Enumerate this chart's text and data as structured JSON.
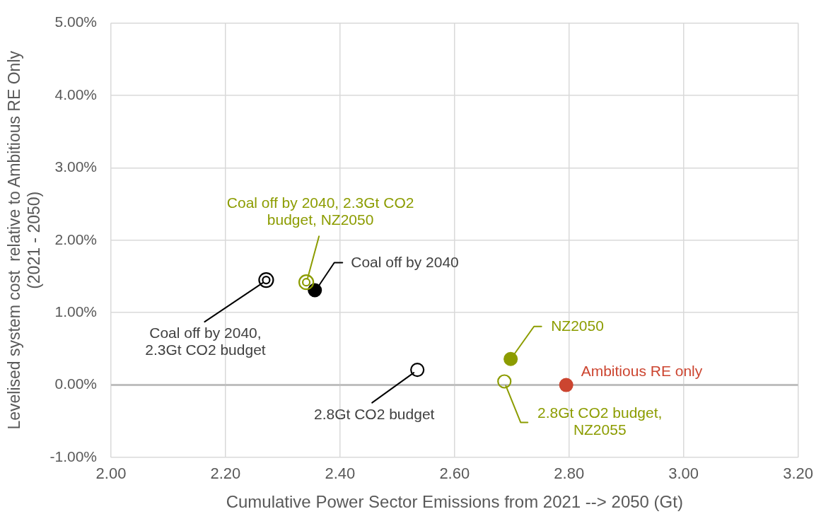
{
  "chart_data": {
    "type": "scatter",
    "xlabel": "Cumulative Power Sector Emissions from 2021 --> 2050 (Gt)",
    "ylabel": "Levelised system cost  relative to Ambitious RE Only\n(2021 - 2050)",
    "xlim": [
      2,
      3.2
    ],
    "ylim": [
      -1,
      5
    ],
    "xticks": [
      {
        "value": 2,
        "label": "2.00"
      },
      {
        "value": 2.2,
        "label": "2.20"
      },
      {
        "value": 2.4,
        "label": "2.40"
      },
      {
        "value": 2.6,
        "label": "2.60"
      },
      {
        "value": 2.8,
        "label": "2.80"
      },
      {
        "value": 3,
        "label": "3.00"
      },
      {
        "value": 3.2,
        "label": "3.20"
      }
    ],
    "yticks": [
      {
        "value": -1,
        "label": "-1.00%"
      },
      {
        "value": 0,
        "label": "0.00%"
      },
      {
        "value": 1,
        "label": "1.00%"
      },
      {
        "value": 2,
        "label": "2.00%"
      },
      {
        "value": 3,
        "label": "3.00%"
      },
      {
        "value": 4,
        "label": "4.00%"
      },
      {
        "value": 5,
        "label": "5.00%"
      }
    ],
    "grid": true,
    "marker": "circle",
    "series": [
      {
        "name": "Ambitious RE only",
        "color": "#cc4530",
        "x": [
          2.795
        ],
        "values": [
          0
        ]
      },
      {
        "name": "NZ2050",
        "color": "#8c9c00",
        "x": [
          2.698
        ],
        "values": [
          0.36
        ]
      },
      {
        "name": "2.8Gt CO2 budget, NZ2055",
        "color": "#8c9c00",
        "x": [
          2.687
        ],
        "values": [
          0.05
        ]
      },
      {
        "name": "2.8Gt CO2 budget",
        "color": "#000000",
        "x": [
          2.535
        ],
        "values": [
          0.21
        ]
      },
      {
        "name": "Coal off by 2040, 2.3Gt CO2 budget, NZ2050",
        "color": "#8c9c00",
        "x": [
          2.341
        ],
        "values": [
          1.42
        ]
      },
      {
        "name": "Coal off by 2040",
        "color": "#000000",
        "x": [
          2.356
        ],
        "values": [
          1.31
        ]
      },
      {
        "name": "Coal off by 2040, 2.3Gt CO2 budget",
        "color": "#000000",
        "x": [
          2.271
        ],
        "values": [
          1.45
        ]
      }
    ]
  }
}
